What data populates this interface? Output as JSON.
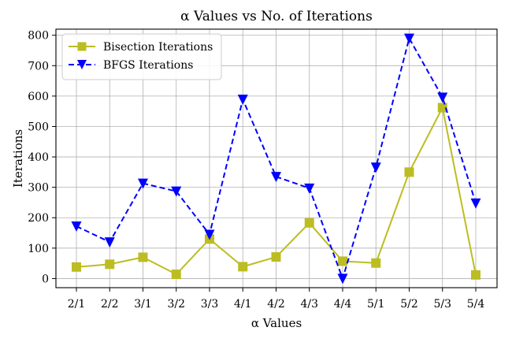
{
  "chart_data": {
    "type": "line",
    "title": "α Values vs No. of Iterations",
    "xlabel": "α Values",
    "ylabel": "Iterations",
    "categories": [
      "2/1",
      "2/2",
      "3/1",
      "3/2",
      "3/3",
      "4/1",
      "4/2",
      "4/3",
      "4/4",
      "5/1",
      "5/2",
      "5/3",
      "5/4"
    ],
    "ylim": [
      -30,
      820
    ],
    "yticks": [
      0,
      100,
      200,
      300,
      400,
      500,
      600,
      700,
      800
    ],
    "grid": true,
    "legend_position": "top-left",
    "series": [
      {
        "name": "Bisection Iterations",
        "color": "#bcbd22",
        "line_style": "solid",
        "marker": "square",
        "values": [
          38,
          47,
          70,
          14,
          130,
          39,
          71,
          183,
          57,
          51,
          350,
          562,
          12
        ]
      },
      {
        "name": "BFGS Iterations",
        "color": "#0000ff",
        "line_style": "dashed",
        "marker": "triangle-down",
        "values": [
          172,
          120,
          313,
          287,
          145,
          589,
          335,
          297,
          0,
          366,
          790,
          596,
          248
        ]
      }
    ]
  }
}
